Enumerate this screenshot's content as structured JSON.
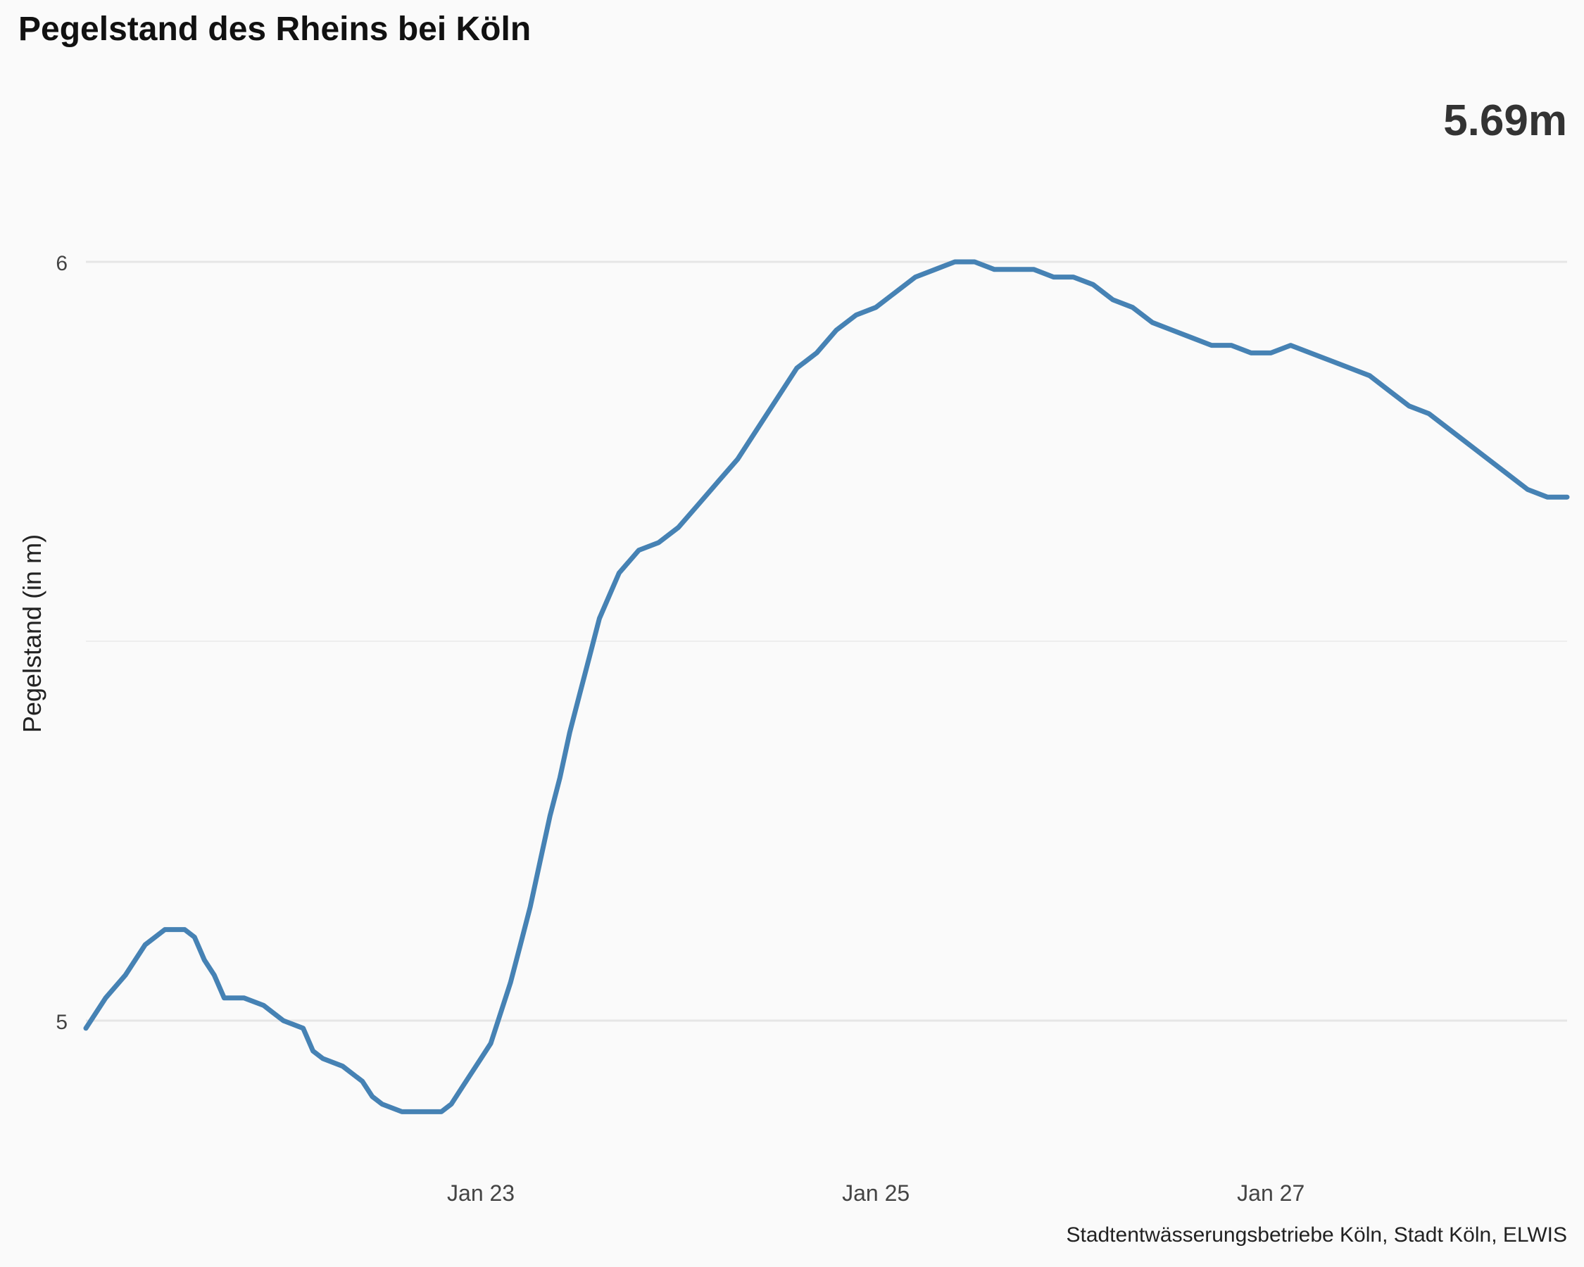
{
  "chart_data": {
    "type": "line",
    "title": "Pegelstand des Rheins bei Köln",
    "ylabel": "Pegelstand (in m)",
    "xlabel": "",
    "caption": "Stadtentwässerungsbetriebe Köln, Stadt Köln, ELWIS",
    "current_value_label": "5.69m",
    "ylim": [
      4.8,
      6.3
    ],
    "y_ticks": [
      5,
      6
    ],
    "y_tick_labels": [
      "5",
      "6"
    ],
    "y_minor_gridlines": [
      5.5
    ],
    "x_range_days": [
      0,
      7.5
    ],
    "x_ticks": [
      2,
      4,
      6
    ],
    "x_tick_labels": [
      "Jan 23",
      "Jan 25",
      "Jan 27"
    ],
    "grid": true,
    "line_color": "#4682b4",
    "series": [
      {
        "x": [
          0.0,
          0.1,
          0.2,
          0.25,
          0.3,
          0.4,
          0.5,
          0.55,
          0.6,
          0.65,
          0.7,
          0.8,
          0.9,
          1.0,
          1.1,
          1.15,
          1.2,
          1.3,
          1.35,
          1.4,
          1.45,
          1.5,
          1.6,
          1.7,
          1.8,
          1.85,
          1.9,
          1.95,
          2.0,
          2.05,
          2.1,
          2.15,
          2.2,
          2.25,
          2.3,
          2.35,
          2.4,
          2.45,
          2.5,
          2.55,
          2.6,
          2.65,
          2.7,
          2.8,
          2.9,
          3.0,
          3.1,
          3.2,
          3.3,
          3.4,
          3.5,
          3.6,
          3.7,
          3.8,
          3.9,
          4.0,
          4.1,
          4.2,
          4.3,
          4.4,
          4.5,
          4.6,
          4.7,
          4.8,
          4.9,
          5.0,
          5.1,
          5.2,
          5.3,
          5.4,
          5.5,
          5.6,
          5.7,
          5.8,
          5.9,
          6.0,
          6.1,
          6.2,
          6.3,
          6.4,
          6.5,
          6.6,
          6.7,
          6.8,
          6.9,
          7.0,
          7.1,
          7.2,
          7.3,
          7.4,
          7.5
        ],
        "y": [
          4.99,
          5.03,
          5.06,
          5.08,
          5.1,
          5.12,
          5.12,
          5.11,
          5.08,
          5.06,
          5.03,
          5.03,
          5.02,
          5.0,
          4.99,
          4.96,
          4.95,
          4.94,
          4.93,
          4.92,
          4.9,
          4.89,
          4.88,
          4.88,
          4.88,
          4.89,
          4.91,
          4.93,
          4.95,
          4.97,
          5.01,
          5.05,
          5.1,
          5.15,
          5.21,
          5.27,
          5.32,
          5.38,
          5.43,
          5.48,
          5.53,
          5.56,
          5.59,
          5.62,
          5.63,
          5.65,
          5.68,
          5.71,
          5.74,
          5.78,
          5.82,
          5.86,
          5.88,
          5.91,
          5.93,
          5.94,
          5.96,
          5.98,
          5.99,
          6.0,
          6.0,
          5.99,
          5.99,
          5.99,
          5.98,
          5.98,
          5.97,
          5.95,
          5.94,
          5.92,
          5.91,
          5.9,
          5.89,
          5.89,
          5.88,
          5.88,
          5.89,
          5.88,
          5.87,
          5.86,
          5.85,
          5.83,
          5.81,
          5.8,
          5.78,
          5.76,
          5.74,
          5.72,
          5.7,
          5.69,
          5.69
        ]
      }
    ]
  }
}
